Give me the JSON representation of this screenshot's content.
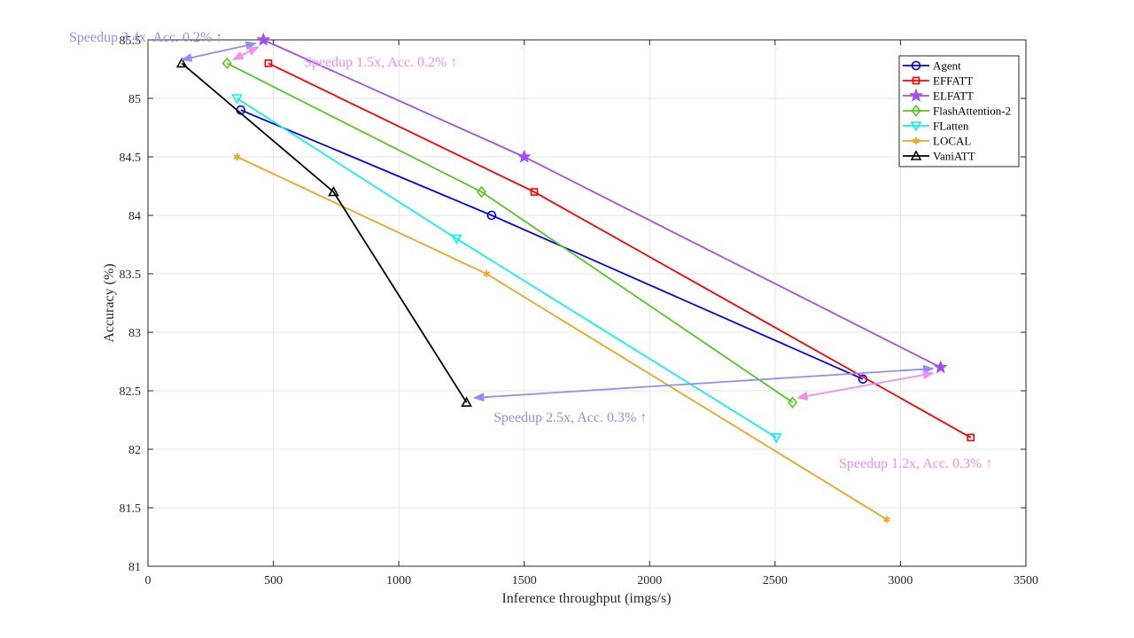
{
  "chart_data": {
    "type": "line",
    "title": "",
    "xlabel": "Inference throughput (imgs/s)",
    "ylabel": "Accuracy (%)",
    "xlim": [
      0,
      3500
    ],
    "ylim": [
      81,
      85.5
    ],
    "xticks": [
      0,
      500,
      1000,
      1500,
      2000,
      2500,
      3000,
      3500
    ],
    "yticks": [
      81,
      81.5,
      82,
      82.5,
      83,
      83.5,
      84,
      84.5,
      85,
      85.5
    ],
    "xtick_labels": [
      "0",
      "500",
      "1000",
      "1500",
      "2000",
      "2500",
      "3000",
      "3500"
    ],
    "ytick_labels": [
      "81",
      "81.5",
      "82",
      "82.5",
      "83",
      "83.5",
      "84",
      "84.5",
      "85",
      "85.5"
    ],
    "grid": true,
    "legend_position": "top-right",
    "series": [
      {
        "name": "Agent",
        "color": "#0000ff",
        "marker": "circle",
        "x": [
          370,
          1370,
          2850
        ],
        "y": [
          84.9,
          84.0,
          82.6
        ]
      },
      {
        "name": "EFFATT",
        "color": "#ff0000",
        "marker": "square",
        "x": [
          480,
          1540,
          3280
        ],
        "y": [
          85.3,
          84.2,
          82.1
        ]
      },
      {
        "name": "ELFATT",
        "color": "#a24ff0",
        "marker": "star",
        "x": [
          460,
          1500,
          3160
        ],
        "y": [
          85.5,
          84.5,
          82.7
        ]
      },
      {
        "name": "FlashAttention-2",
        "color": "#55c81e",
        "marker": "diamond",
        "x": [
          315,
          1330,
          2570
        ],
        "y": [
          85.3,
          84.2,
          82.4
        ]
      },
      {
        "name": "FLatten",
        "color": "#11f0f0",
        "marker": "triangle-down",
        "x": [
          355,
          1230,
          2505
        ],
        "y": [
          85.0,
          83.8,
          82.1
        ]
      },
      {
        "name": "LOCAL",
        "color": "#efa51e",
        "marker": "asterisk",
        "x": [
          355,
          1350,
          2945
        ],
        "y": [
          84.5,
          83.5,
          81.4
        ]
      },
      {
        "name": "VaniATT",
        "color": "#000000",
        "marker": "triangle-up",
        "x": [
          135,
          740,
          1270
        ],
        "y": [
          85.3,
          84.2,
          82.4
        ]
      }
    ],
    "annotations": [
      {
        "text": "Speedup 3.4x, Acc. 0.2% ↑",
        "color": "#8f8ff5",
        "arrow_from": [
          430,
          85.47
        ],
        "arrow_to": [
          135,
          85.33
        ]
      },
      {
        "text": "Speedup 1.5x, Acc. 0.2% ↑",
        "color": "#f58cf0",
        "arrow_from": [
          340,
          85.33
        ],
        "arrow_to": [
          440,
          85.44
        ]
      },
      {
        "text": "Speedup 2.5x, Acc. 0.3% ↑",
        "color": "#8f8ff5",
        "arrow_from": [
          3130,
          82.69
        ],
        "arrow_to": [
          1300,
          82.44
        ]
      },
      {
        "text": "Speedup 1.2x, Acc. 0.3% ↑",
        "color": "#f58cf0",
        "arrow_from": [
          2590,
          82.44
        ],
        "arrow_to": [
          3130,
          82.65
        ]
      }
    ]
  }
}
